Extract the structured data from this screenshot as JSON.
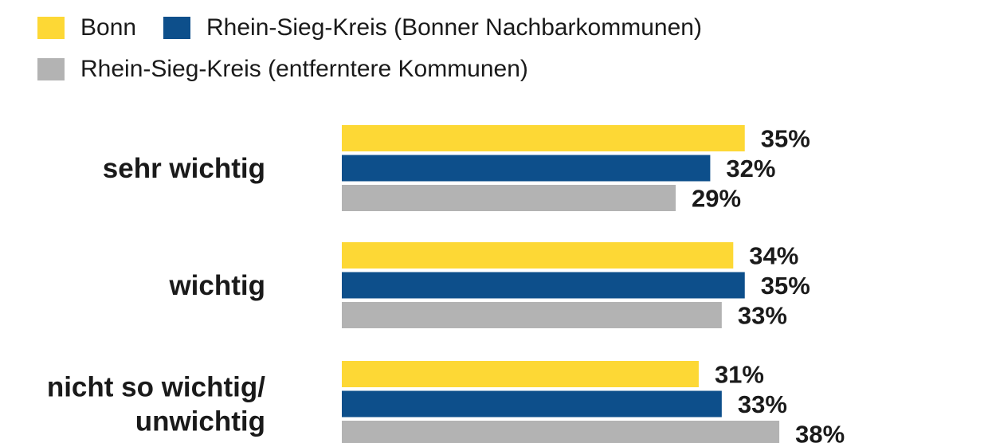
{
  "chart_data": {
    "type": "bar",
    "orientation": "horizontal",
    "categories": [
      "sehr wichtig",
      "wichtig",
      "nicht so wichtig/ unwichtig"
    ],
    "category_lines": [
      [
        "sehr wichtig"
      ],
      [
        "wichtig"
      ],
      [
        "nicht so wichtig/",
        "unwichtig"
      ]
    ],
    "series": [
      {
        "name": "Bonn",
        "color": "#fdd835",
        "values": [
          35,
          34,
          31
        ],
        "labels": [
          "35%",
          "34%",
          "31%"
        ]
      },
      {
        "name": "Rhein-Sieg-Kreis (Bonner Nachbarkommunen)",
        "color": "#0d4f8b",
        "values": [
          32,
          35,
          33
        ],
        "labels": [
          "32%",
          "35%",
          "33%"
        ]
      },
      {
        "name": "Rhein-Sieg-Kreis (entferntere Kommunen)",
        "color": "#b3b3b3",
        "values": [
          29,
          33,
          38
        ],
        "labels": [
          "29%",
          "33%",
          "38%"
        ]
      }
    ],
    "unit": "%",
    "legend_position": "top-left",
    "grid": false
  }
}
